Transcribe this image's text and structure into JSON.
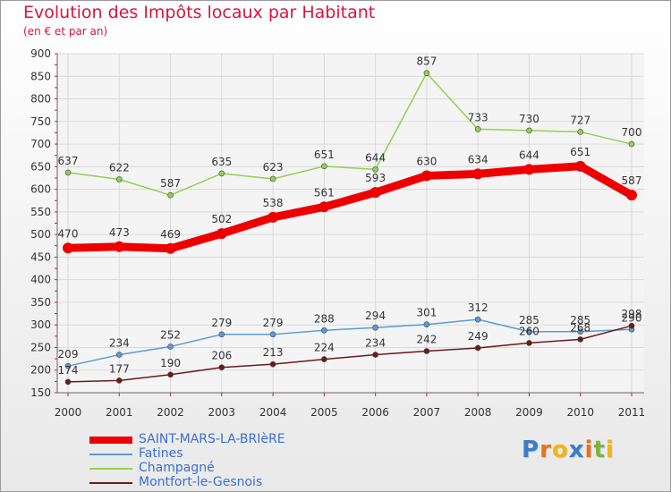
{
  "header": {
    "title": "Evolution des Impôts locaux par Habitant",
    "subtitle": "(en € et par an)"
  },
  "chart_data": {
    "type": "line",
    "title": "Evolution des Impôts locaux par Habitant",
    "subtitle": "(en € et par an)",
    "xlabel": "",
    "ylabel": "",
    "x": [
      "2000",
      "2001",
      "2002",
      "2003",
      "2004",
      "2005",
      "2006",
      "2007",
      "2008",
      "2009",
      "2010",
      "2011"
    ],
    "ylim": [
      150,
      900
    ],
    "yticks": [
      150,
      200,
      250,
      300,
      350,
      400,
      450,
      500,
      550,
      600,
      650,
      700,
      750,
      800,
      850,
      900
    ],
    "grid": true,
    "legend_position": "bottom-left",
    "series": [
      {
        "name": "SAINT-MARS-LA-BRIèRE",
        "color": "#ee0000",
        "values": [
          470,
          473,
          469,
          502,
          538,
          561,
          593,
          630,
          634,
          644,
          651,
          587
        ]
      },
      {
        "name": "Fatines",
        "color": "#5b9bd5",
        "values": [
          209,
          234,
          252,
          279,
          279,
          288,
          294,
          301,
          312,
          285,
          285,
          290
        ]
      },
      {
        "name": "Champagné",
        "color": "#92d050",
        "values": [
          637,
          622,
          587,
          635,
          623,
          651,
          644,
          857,
          733,
          730,
          727,
          700
        ]
      },
      {
        "name": "Montfort-le-Gesnois",
        "color": "#6b1a1a",
        "values": [
          174,
          177,
          190,
          206,
          213,
          224,
          234,
          242,
          249,
          260,
          268,
          298
        ]
      }
    ]
  },
  "legend": {
    "items": [
      {
        "label": "SAINT-MARS-LA-BRIèRE",
        "color": "#ee0000"
      },
      {
        "label": "Fatines",
        "color": "#5b9bd5"
      },
      {
        "label": "Champagné",
        "color": "#92d050"
      },
      {
        "label": "Montfort-le-Gesnois",
        "color": "#6b1a1a"
      }
    ]
  },
  "logo": {
    "letters": [
      "P",
      "r",
      "o",
      "x",
      "i",
      "t",
      "i"
    ],
    "colors": [
      "#3a7dc9",
      "#e8731a",
      "#f2b518",
      "#3a7dc9",
      "#e8731a",
      "#7cb342",
      "#f2b518"
    ]
  }
}
